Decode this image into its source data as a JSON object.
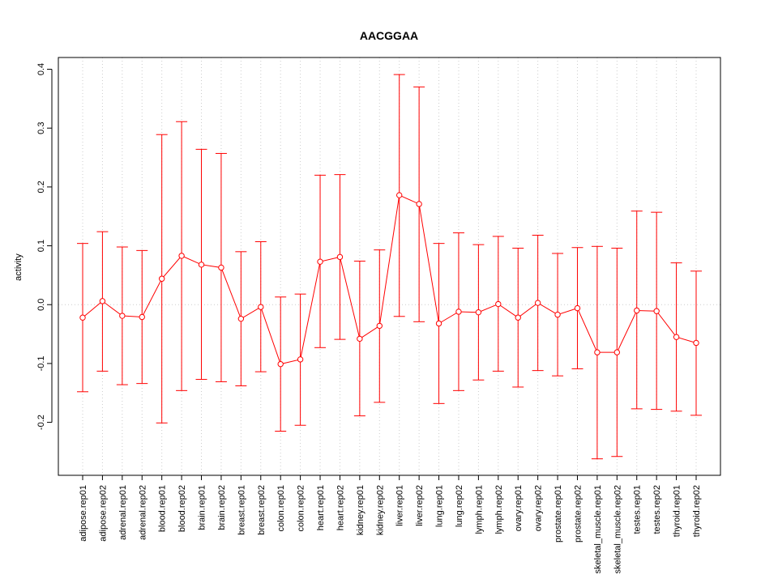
{
  "chart_data": {
    "type": "line",
    "title": "AACGGAA",
    "xlabel": "",
    "ylabel": "activity",
    "ylim": [
      -0.29,
      0.42
    ],
    "yticks": [
      -0.2,
      -0.1,
      0.0,
      0.1,
      0.2,
      0.3,
      0.4
    ],
    "ytick_labels": [
      "-0.2",
      "-0.1",
      "0.0",
      "0.1",
      "0.2",
      "0.3",
      "0.4"
    ],
    "grid": true,
    "color": "#ff0000",
    "categories": [
      "adipose.rep01",
      "adipose.rep02",
      "adrenal.rep01",
      "adrenal.rep02",
      "blood.rep01",
      "blood.rep02",
      "brain.rep01",
      "brain.rep02",
      "breast.rep01",
      "breast.rep02",
      "colon.rep01",
      "colon.rep02",
      "heart.rep01",
      "heart.rep02",
      "kidney.rep01",
      "kidney.rep02",
      "liver.rep01",
      "liver.rep02",
      "lung.rep01",
      "lung.rep02",
      "lymph.rep01",
      "lymph.rep02",
      "ovary.rep01",
      "ovary.rep02",
      "prostate.rep01",
      "prostate.rep02",
      "skeletal_muscle.rep01",
      "skeletal_muscle.rep02",
      "testes.rep01",
      "testes.rep02",
      "thyroid.rep01",
      "thyroid.rep02"
    ],
    "values": [
      -0.022,
      0.006,
      -0.019,
      -0.021,
      0.044,
      0.083,
      0.068,
      0.063,
      -0.024,
      -0.004,
      -0.101,
      -0.093,
      0.073,
      0.081,
      -0.058,
      -0.036,
      0.186,
      0.171,
      -0.032,
      -0.012,
      -0.013,
      0.001,
      -0.022,
      0.003,
      -0.017,
      -0.006,
      -0.081,
      -0.081,
      -0.01,
      -0.011,
      -0.055,
      -0.065
    ],
    "upper": [
      0.104,
      0.124,
      0.098,
      0.092,
      0.289,
      0.311,
      0.264,
      0.257,
      0.09,
      0.107,
      0.013,
      0.018,
      0.22,
      0.221,
      0.074,
      0.093,
      0.391,
      0.37,
      0.104,
      0.122,
      0.102,
      0.116,
      0.096,
      0.118,
      0.087,
      0.097,
      0.099,
      0.096,
      0.159,
      0.157,
      0.071,
      0.057
    ],
    "lower": [
      -0.148,
      -0.113,
      -0.136,
      -0.134,
      -0.201,
      -0.146,
      -0.127,
      -0.131,
      -0.138,
      -0.114,
      -0.215,
      -0.205,
      -0.073,
      -0.059,
      -0.189,
      -0.166,
      -0.02,
      -0.029,
      -0.168,
      -0.146,
      -0.128,
      -0.113,
      -0.14,
      -0.112,
      -0.121,
      -0.109,
      -0.262,
      -0.258,
      -0.177,
      -0.178,
      -0.181,
      -0.188
    ]
  }
}
